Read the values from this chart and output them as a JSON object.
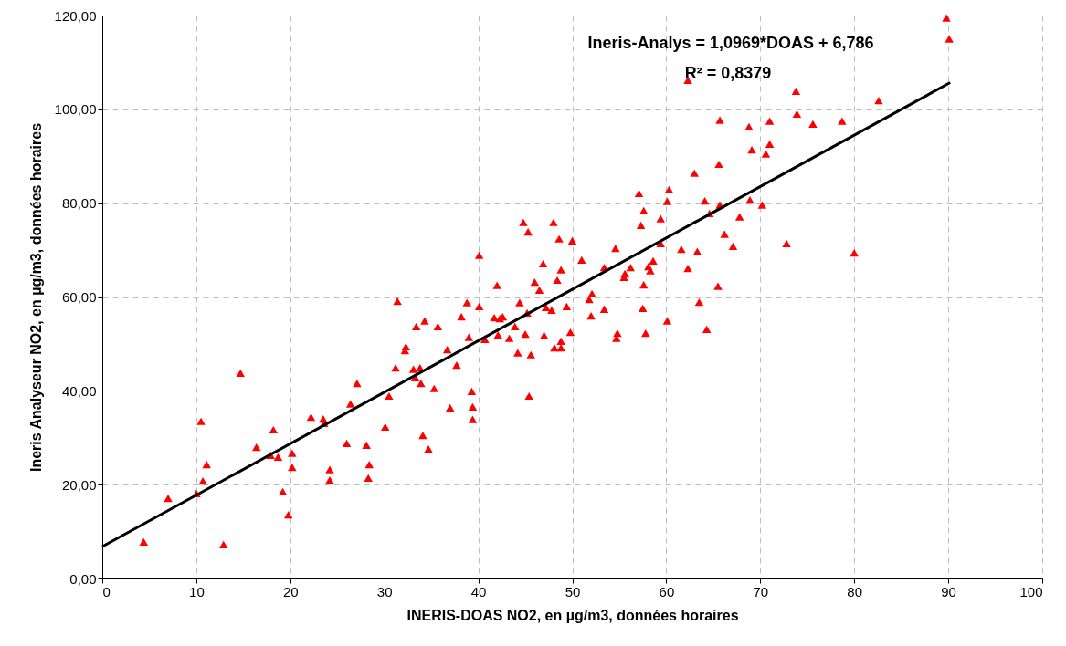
{
  "chart_data": {
    "type": "scatter",
    "xlabel": "INERIS-DOAS NO2, en µg/m3, données horaires",
    "ylabel": "Ineris Analyseur NO2, en µg/m3, données horaires",
    "annotations": [
      "Ineris-Analys = 1,0969*DOAS + 6,786",
      "R² = 0,8379"
    ],
    "xlim": [
      0,
      100
    ],
    "xticks": [
      0,
      10,
      20,
      30,
      40,
      50,
      60,
      70,
      80,
      90,
      100
    ],
    "ylim": [
      0,
      120
    ],
    "yticks": [
      {
        "value": 0,
        "label": "0,00"
      },
      {
        "value": 20,
        "label": "20,00"
      },
      {
        "value": 40,
        "label": "40,00"
      },
      {
        "value": 60,
        "label": "60,00"
      },
      {
        "value": 80,
        "label": "80,00"
      },
      {
        "value": 100,
        "label": "100,00"
      },
      {
        "value": 120,
        "label": "120,00"
      }
    ],
    "grid": true,
    "series": [
      {
        "marker": "triangle",
        "color": "#ff0000",
        "x": [
          4.4,
          7.0,
          10.0,
          10.5,
          10.7,
          11.1,
          12.9,
          14.7,
          16.4,
          18.2,
          17.9,
          18.7,
          19.2,
          19.8,
          20.2,
          20.2,
          22.2,
          23.5,
          23.6,
          24.2,
          24.2,
          26.0,
          26.4,
          27.1,
          28.1,
          28.4,
          28.3,
          30.1,
          30.5,
          31.2,
          31.4,
          32.2,
          32.3,
          33.1,
          33.3,
          33.4,
          33.8,
          33.9,
          34.1,
          34.3,
          34.7,
          35.3,
          35.7,
          36.7,
          37.0,
          37.7,
          38.2,
          38.8,
          39.0,
          39.3,
          39.4,
          39.4,
          40.1,
          40.1,
          40.7,
          42.0,
          41.7,
          42.3,
          42.1,
          42.6,
          43.3,
          43.9,
          44.2,
          44.4,
          44.8,
          45.0,
          45.2,
          45.3,
          45.4,
          45.6,
          46.0,
          46.5,
          46.9,
          47.0,
          47.2,
          47.8,
          48.0,
          48.1,
          48.4,
          48.6,
          48.8,
          48.8,
          48.8,
          49.4,
          49.8,
          50.0,
          51.0,
          51.8,
          52.0,
          52.1,
          53.4,
          53.4,
          54.6,
          54.8,
          54.7,
          55.5,
          55.6,
          56.2,
          57.1,
          57.3,
          57.5,
          57.6,
          57.6,
          57.8,
          58.1,
          58.3,
          58.6,
          59.4,
          59.4,
          60.3,
          60.1,
          60.1,
          61.6,
          62.3,
          62.3,
          63.0,
          63.3,
          63.5,
          64.1,
          64.3,
          64.6,
          65.5,
          65.6,
          65.7,
          65.7,
          66.2,
          67.1,
          67.8,
          68.8,
          69.1,
          68.9,
          70.2,
          70.6,
          71.0,
          71.0,
          72.8,
          73.8,
          73.9,
          75.6,
          78.7,
          80.0,
          82.6,
          89.8,
          90.1
        ],
        "values": [
          7.8,
          17.1,
          18.1,
          33.5,
          20.8,
          24.3,
          7.2,
          43.8,
          28.0,
          31.7,
          26.3,
          25.9,
          18.5,
          13.6,
          26.7,
          23.7,
          34.4,
          34.0,
          33.1,
          23.2,
          21.0,
          28.8,
          37.2,
          41.6,
          28.4,
          24.3,
          21.4,
          32.3,
          38.9,
          44.9,
          59.1,
          48.6,
          49.4,
          44.6,
          42.8,
          53.7,
          44.9,
          41.6,
          30.5,
          54.9,
          27.6,
          40.5,
          53.7,
          48.8,
          36.4,
          45.5,
          55.8,
          58.8,
          51.4,
          39.9,
          36.6,
          33.9,
          68.9,
          58.0,
          51.0,
          62.5,
          55.6,
          55.4,
          51.9,
          55.8,
          51.2,
          53.7,
          48.1,
          58.8,
          75.9,
          52.1,
          56.6,
          73.9,
          38.9,
          47.7,
          63.2,
          61.5,
          67.1,
          51.8,
          57.8,
          57.2,
          75.9,
          49.2,
          63.6,
          72.4,
          49.2,
          50.6,
          65.8,
          58.0,
          52.5,
          72.0,
          67.9,
          59.5,
          56.0,
          60.7,
          66.3,
          57.4,
          70.4,
          52.3,
          51.2,
          64.2,
          65.0,
          66.3,
          82.1,
          75.3,
          57.6,
          62.6,
          78.4,
          52.3,
          66.5,
          65.6,
          67.7,
          71.4,
          76.7,
          82.9,
          80.4,
          54.9,
          70.2,
          66.1,
          106.2,
          86.4,
          69.7,
          58.9,
          80.5,
          53.1,
          77.8,
          62.3,
          88.3,
          79.6,
          97.7,
          73.4,
          70.8,
          77.1,
          96.3,
          91.4,
          80.7,
          79.6,
          90.5,
          97.5,
          92.6,
          71.4,
          103.9,
          99.0,
          96.9,
          97.5,
          69.4,
          101.9,
          119.5,
          115.0
        ]
      },
      {
        "type": "line",
        "color": "#000000",
        "x": [
          0,
          90.2
        ],
        "values": [
          6.8,
          105.7
        ]
      }
    ]
  }
}
